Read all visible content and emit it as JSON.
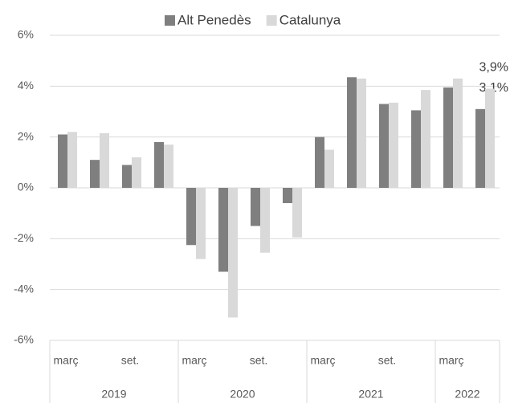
{
  "chart_data": {
    "type": "bar",
    "categories": [
      "març",
      null,
      "set.",
      null,
      "març",
      null,
      "set.",
      null,
      "març",
      null,
      "set.",
      null,
      "març",
      null
    ],
    "groups": [
      {
        "label": "2019",
        "size": 4
      },
      {
        "label": "2020",
        "size": 4
      },
      {
        "label": "2021",
        "size": 4
      },
      {
        "label": "2022",
        "size": 2
      }
    ],
    "series": [
      {
        "name": "Alt Penedès",
        "color": "#7f7f7f",
        "values": [
          2.1,
          1.1,
          0.9,
          1.8,
          -2.25,
          -3.3,
          -1.5,
          -0.6,
          2.0,
          4.35,
          3.3,
          3.05,
          3.95,
          3.1
        ],
        "value_labels": [
          null,
          null,
          null,
          null,
          null,
          null,
          null,
          null,
          null,
          null,
          null,
          null,
          null,
          "3,1%"
        ]
      },
      {
        "name": "Catalunya",
        "color": "#d9d9d9",
        "values": [
          2.2,
          2.15,
          1.2,
          1.7,
          -2.8,
          -5.1,
          -2.55,
          -1.95,
          1.5,
          4.3,
          3.35,
          3.85,
          4.3,
          3.9
        ],
        "value_labels": [
          null,
          null,
          null,
          null,
          null,
          null,
          null,
          null,
          null,
          null,
          null,
          null,
          null,
          "3,9%"
        ]
      }
    ],
    "ylim": [
      -6,
      6
    ],
    "yticks": [
      {
        "value": -6,
        "label": "-6%"
      },
      {
        "value": -4,
        "label": "-4%"
      },
      {
        "value": -2,
        "label": "-2%"
      },
      {
        "value": 0,
        "label": "0%"
      },
      {
        "value": 2,
        "label": "2%"
      },
      {
        "value": 4,
        "label": "4%"
      },
      {
        "value": 6,
        "label": "6%"
      }
    ],
    "grid": true,
    "legend": "top"
  }
}
